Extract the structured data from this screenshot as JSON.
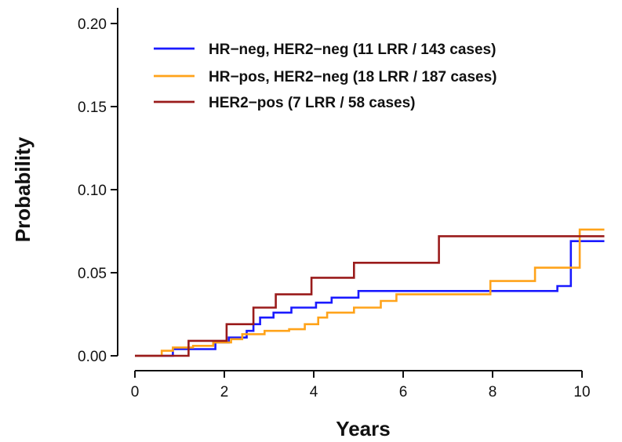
{
  "chart_data": {
    "type": "line",
    "step": true,
    "xlabel": "Years",
    "ylabel": "Probability",
    "xlim": [
      0,
      10.5
    ],
    "ylim": [
      0,
      0.2
    ],
    "xticks": [
      0,
      2,
      4,
      6,
      8,
      10
    ],
    "yticks": [
      0.0,
      0.05,
      0.1,
      0.15,
      0.2
    ],
    "ytick_labels": [
      "0.00",
      "0.05",
      "0.10",
      "0.15",
      "0.20"
    ],
    "grid": false,
    "legend_position": "top-right",
    "series": [
      {
        "name": "HR−neg, HER2−neg  (11 LRR / 143 cases)",
        "color": "#1a1aff",
        "x": [
          0,
          0.85,
          1.8,
          2.1,
          2.5,
          2.65,
          2.8,
          3.1,
          3.5,
          4.05,
          4.4,
          5.0,
          9.45,
          9.75,
          10.5
        ],
        "y": [
          0,
          0.004,
          0.008,
          0.011,
          0.015,
          0.019,
          0.023,
          0.026,
          0.029,
          0.032,
          0.035,
          0.039,
          0.042,
          0.069,
          0.069
        ]
      },
      {
        "name": "HR−pos, HER2−neg  (18 LRR / 187 cases)",
        "color": "#ffa31a",
        "x": [
          0,
          0.6,
          0.85,
          1.3,
          1.75,
          2.15,
          2.4,
          2.9,
          3.45,
          3.8,
          4.1,
          4.3,
          4.9,
          5.5,
          5.85,
          7.95,
          8.95,
          9.95,
          10.5
        ],
        "y": [
          0,
          0.003,
          0.005,
          0.006,
          0.008,
          0.01,
          0.013,
          0.015,
          0.016,
          0.019,
          0.023,
          0.026,
          0.029,
          0.033,
          0.037,
          0.045,
          0.053,
          0.076,
          0.076
        ]
      },
      {
        "name": "HER2−pos  (7 LRR / 58 cases)",
        "color": "#9a1b1b",
        "x": [
          0,
          1.2,
          2.05,
          2.65,
          3.15,
          3.95,
          4.9,
          6.8,
          10.5
        ],
        "y": [
          0,
          0.009,
          0.019,
          0.029,
          0.037,
          0.047,
          0.056,
          0.072,
          0.072
        ]
      }
    ]
  }
}
